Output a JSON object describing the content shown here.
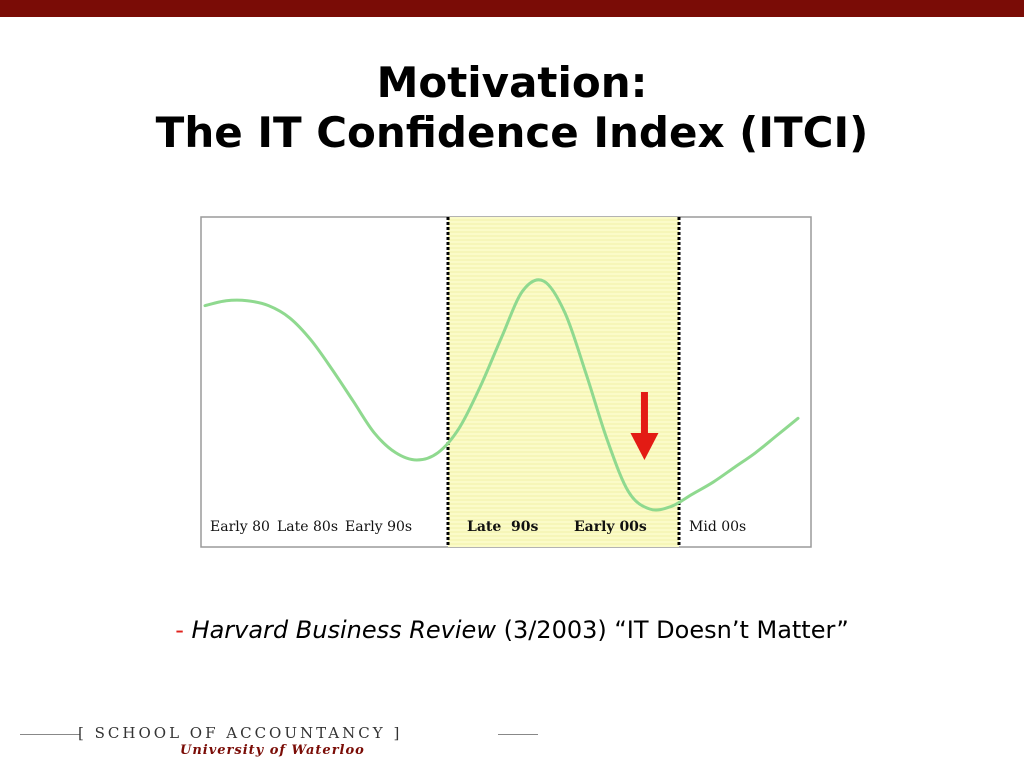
{
  "slide": {
    "title_line1": "Motivation:",
    "title_line2": "The IT Confidence Index (ITCI)",
    "accent_color": "#7a0c06"
  },
  "citation": {
    "dash": "-",
    "journal": "Harvard Business Review",
    "rest": " (3/2003) “IT Doesn’t Matter”"
  },
  "footer": {
    "school": "SCHOOL OF ACCOUNTANCY",
    "bracket_open": "[",
    "bracket_close": "]",
    "university": "University of Waterloo"
  },
  "chart_data": {
    "type": "line",
    "title": "",
    "xlabel": "",
    "ylabel": "",
    "categories": [
      "Early 80",
      "Late 80s",
      "Early 90s",
      "Late  90s",
      "Early 00s",
      "Mid 00s"
    ],
    "highlight": {
      "from_category": "Late  90s",
      "to_category": "Early 00s",
      "color": "#fbfbc8"
    },
    "series": [
      {
        "color": "#8fd98f",
        "x": [
          0.0,
          0.2,
          0.4,
          0.6,
          0.8,
          1.0,
          1.2,
          1.4,
          1.6,
          1.8,
          2.0,
          2.2,
          2.4,
          2.6,
          2.8,
          3.0,
          3.2,
          3.4,
          3.6,
          3.8,
          4.0,
          4.2,
          4.4,
          4.6,
          4.8,
          5.0,
          5.2,
          5.4,
          5.6
        ],
        "values": [
          0.83,
          0.85,
          0.85,
          0.83,
          0.78,
          0.69,
          0.57,
          0.44,
          0.31,
          0.23,
          0.2,
          0.23,
          0.33,
          0.5,
          0.7,
          0.89,
          0.93,
          0.8,
          0.55,
          0.28,
          0.07,
          0.0,
          0.01,
          0.06,
          0.11,
          0.17,
          0.23,
          0.3,
          0.37
        ]
      }
    ],
    "annotation": {
      "type": "arrow-down",
      "x": 4.15,
      "color": "#e31b14"
    },
    "grid": false,
    "legend": "none"
  }
}
